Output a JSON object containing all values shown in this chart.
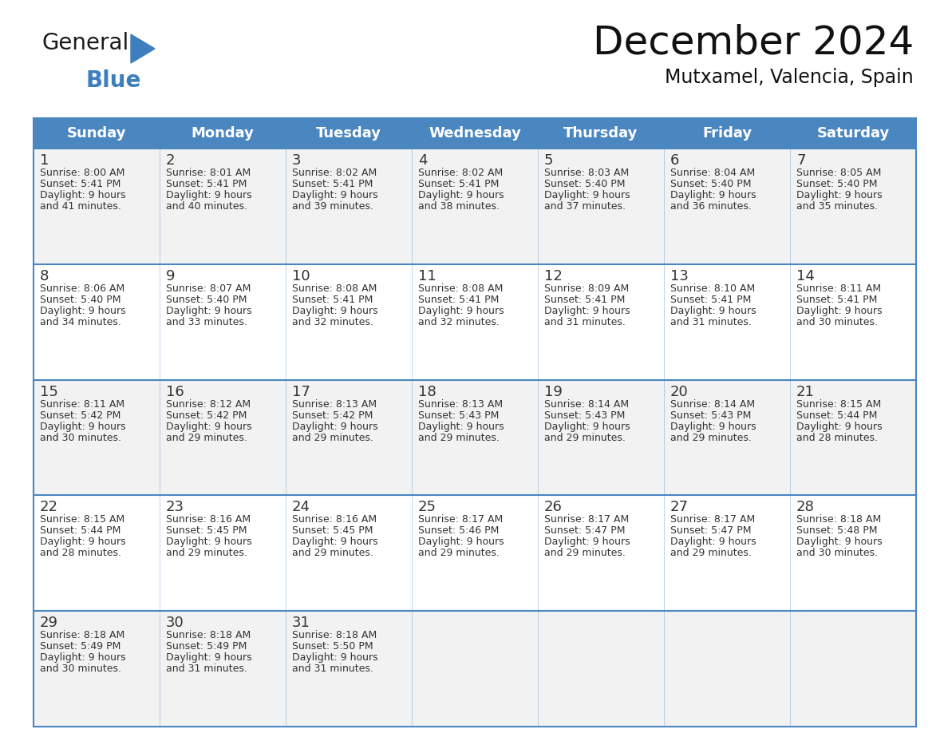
{
  "title": "December 2024",
  "subtitle": "Mutxamel, Valencia, Spain",
  "header_color": "#4a86c0",
  "header_text_color": "#ffffff",
  "day_names": [
    "Sunday",
    "Monday",
    "Tuesday",
    "Wednesday",
    "Thursday",
    "Friday",
    "Saturday"
  ],
  "row0_color": "#f2f2f2",
  "row1_color": "#ffffff",
  "text_color": "#333333",
  "border_color": "#4a86c0",
  "line_color": "#4a86c0",
  "days": [
    {
      "day": 1,
      "col": 0,
      "row": 0,
      "sunrise": "8:00 AM",
      "sunset": "5:41 PM",
      "dl_min": "41"
    },
    {
      "day": 2,
      "col": 1,
      "row": 0,
      "sunrise": "8:01 AM",
      "sunset": "5:41 PM",
      "dl_min": "40"
    },
    {
      "day": 3,
      "col": 2,
      "row": 0,
      "sunrise": "8:02 AM",
      "sunset": "5:41 PM",
      "dl_min": "39"
    },
    {
      "day": 4,
      "col": 3,
      "row": 0,
      "sunrise": "8:02 AM",
      "sunset": "5:41 PM",
      "dl_min": "38"
    },
    {
      "day": 5,
      "col": 4,
      "row": 0,
      "sunrise": "8:03 AM",
      "sunset": "5:40 PM",
      "dl_min": "37"
    },
    {
      "day": 6,
      "col": 5,
      "row": 0,
      "sunrise": "8:04 AM",
      "sunset": "5:40 PM",
      "dl_min": "36"
    },
    {
      "day": 7,
      "col": 6,
      "row": 0,
      "sunrise": "8:05 AM",
      "sunset": "5:40 PM",
      "dl_min": "35"
    },
    {
      "day": 8,
      "col": 0,
      "row": 1,
      "sunrise": "8:06 AM",
      "sunset": "5:40 PM",
      "dl_min": "34"
    },
    {
      "day": 9,
      "col": 1,
      "row": 1,
      "sunrise": "8:07 AM",
      "sunset": "5:40 PM",
      "dl_min": "33"
    },
    {
      "day": 10,
      "col": 2,
      "row": 1,
      "sunrise": "8:08 AM",
      "sunset": "5:41 PM",
      "dl_min": "32"
    },
    {
      "day": 11,
      "col": 3,
      "row": 1,
      "sunrise": "8:08 AM",
      "sunset": "5:41 PM",
      "dl_min": "32"
    },
    {
      "day": 12,
      "col": 4,
      "row": 1,
      "sunrise": "8:09 AM",
      "sunset": "5:41 PM",
      "dl_min": "31"
    },
    {
      "day": 13,
      "col": 5,
      "row": 1,
      "sunrise": "8:10 AM",
      "sunset": "5:41 PM",
      "dl_min": "31"
    },
    {
      "day": 14,
      "col": 6,
      "row": 1,
      "sunrise": "8:11 AM",
      "sunset": "5:41 PM",
      "dl_min": "30"
    },
    {
      "day": 15,
      "col": 0,
      "row": 2,
      "sunrise": "8:11 AM",
      "sunset": "5:42 PM",
      "dl_min": "30"
    },
    {
      "day": 16,
      "col": 1,
      "row": 2,
      "sunrise": "8:12 AM",
      "sunset": "5:42 PM",
      "dl_min": "29"
    },
    {
      "day": 17,
      "col": 2,
      "row": 2,
      "sunrise": "8:13 AM",
      "sunset": "5:42 PM",
      "dl_min": "29"
    },
    {
      "day": 18,
      "col": 3,
      "row": 2,
      "sunrise": "8:13 AM",
      "sunset": "5:43 PM",
      "dl_min": "29"
    },
    {
      "day": 19,
      "col": 4,
      "row": 2,
      "sunrise": "8:14 AM",
      "sunset": "5:43 PM",
      "dl_min": "29"
    },
    {
      "day": 20,
      "col": 5,
      "row": 2,
      "sunrise": "8:14 AM",
      "sunset": "5:43 PM",
      "dl_min": "29"
    },
    {
      "day": 21,
      "col": 6,
      "row": 2,
      "sunrise": "8:15 AM",
      "sunset": "5:44 PM",
      "dl_min": "28"
    },
    {
      "day": 22,
      "col": 0,
      "row": 3,
      "sunrise": "8:15 AM",
      "sunset": "5:44 PM",
      "dl_min": "28"
    },
    {
      "day": 23,
      "col": 1,
      "row": 3,
      "sunrise": "8:16 AM",
      "sunset": "5:45 PM",
      "dl_min": "29"
    },
    {
      "day": 24,
      "col": 2,
      "row": 3,
      "sunrise": "8:16 AM",
      "sunset": "5:45 PM",
      "dl_min": "29"
    },
    {
      "day": 25,
      "col": 3,
      "row": 3,
      "sunrise": "8:17 AM",
      "sunset": "5:46 PM",
      "dl_min": "29"
    },
    {
      "day": 26,
      "col": 4,
      "row": 3,
      "sunrise": "8:17 AM",
      "sunset": "5:47 PM",
      "dl_min": "29"
    },
    {
      "day": 27,
      "col": 5,
      "row": 3,
      "sunrise": "8:17 AM",
      "sunset": "5:47 PM",
      "dl_min": "29"
    },
    {
      "day": 28,
      "col": 6,
      "row": 3,
      "sunrise": "8:18 AM",
      "sunset": "5:48 PM",
      "dl_min": "30"
    },
    {
      "day": 29,
      "col": 0,
      "row": 4,
      "sunrise": "8:18 AM",
      "sunset": "5:49 PM",
      "dl_min": "30"
    },
    {
      "day": 30,
      "col": 1,
      "row": 4,
      "sunrise": "8:18 AM",
      "sunset": "5:49 PM",
      "dl_min": "31"
    },
    {
      "day": 31,
      "col": 2,
      "row": 4,
      "sunrise": "8:18 AM",
      "sunset": "5:50 PM",
      "dl_min": "31"
    }
  ],
  "logo_color_general": "#1a1a1a",
  "logo_color_blue": "#3d7ebf",
  "logo_triangle_color": "#3d7ebf",
  "title_fontsize": 36,
  "subtitle_fontsize": 17,
  "header_fontsize": 13,
  "day_num_fontsize": 13,
  "cell_text_fontsize": 9
}
